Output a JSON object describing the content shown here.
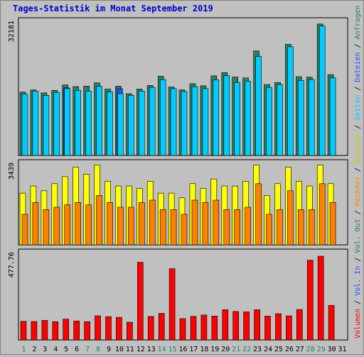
{
  "chart_data": [
    {
      "type": "bar",
      "title": "Tages-Statistik im Monat September 2019",
      "categories": [
        "1",
        "2",
        "3",
        "4",
        "5",
        "6",
        "7",
        "8",
        "9",
        "10",
        "11",
        "12",
        "13",
        "14",
        "15",
        "16",
        "17",
        "18",
        "19",
        "20",
        "21",
        "22",
        "23",
        "24",
        "25",
        "26",
        "27",
        "28",
        "29",
        "30",
        "31"
      ],
      "weekend_days": [
        "1",
        "7",
        "8",
        "14",
        "15",
        "21",
        "22",
        "28",
        "29"
      ],
      "panel": "top",
      "ylim": [
        0,
        32181
      ],
      "ytick": "32181",
      "series": [
        {
          "name": "Anfragen",
          "color": "#2a8060",
          "values": [
            15300,
            15800,
            15100,
            15700,
            17000,
            16600,
            16700,
            17500,
            16000,
            16700,
            14900,
            16000,
            16900,
            19100,
            16500,
            15800,
            17300,
            16800,
            19200,
            20000,
            18900,
            18700,
            25200,
            17100,
            17600,
            26800,
            19000,
            18900,
            31700,
            19500,
            0
          ]
        },
        {
          "name": "Seiten",
          "color": "#2050ff",
          "values": [
            0,
            0,
            0,
            0,
            16300,
            0,
            0,
            0,
            0,
            16100,
            0,
            0,
            0,
            0,
            0,
            0,
            0,
            0,
            0,
            0,
            0,
            0,
            0,
            0,
            0,
            0,
            0,
            0,
            0,
            0,
            0
          ]
        },
        {
          "name": "Dateien",
          "color": "#00ccff",
          "values": [
            14800,
            15500,
            14500,
            15200,
            16100,
            15700,
            15500,
            16700,
            15300,
            14900,
            14500,
            15500,
            16400,
            18300,
            16100,
            15400,
            16600,
            16100,
            18200,
            19200,
            17600,
            17900,
            23900,
            16400,
            17100,
            26200,
            18100,
            18300,
            31200,
            18700,
            0
          ]
        }
      ],
      "legend": [
        "Anfragen",
        "/",
        "Dateien",
        "/",
        "Seiten",
        "/",
        "Besuche"
      ]
    },
    {
      "type": "bar",
      "panel": "middle",
      "ylim": [
        0,
        3439
      ],
      "ytick": "3439",
      "series": [
        {
          "name": "Besuche",
          "color": "#ffff00",
          "values": [
            2200,
            2500,
            2300,
            2600,
            2900,
            3300,
            3000,
            3400,
            2700,
            2500,
            2500,
            2400,
            2700,
            2200,
            2200,
            2000,
            2600,
            2400,
            2800,
            2500,
            2500,
            2700,
            3400,
            2100,
            2600,
            3300,
            2700,
            2500,
            3400,
            2600,
            0
          ]
        },
        {
          "name": "Rechner",
          "color": "#ff8000",
          "values": [
            1300,
            1800,
            1500,
            1600,
            1700,
            1800,
            1700,
            2100,
            1800,
            1600,
            1600,
            1800,
            1900,
            1500,
            1500,
            1300,
            1900,
            1800,
            1900,
            1500,
            1500,
            1600,
            2600,
            1300,
            1500,
            2300,
            1500,
            1500,
            2600,
            1800,
            0
          ]
        }
      ],
      "legend": [
        "Rechner",
        "/",
        "Besuche"
      ]
    },
    {
      "type": "bar",
      "panel": "bottom",
      "ylim": [
        0,
        477.76
      ],
      "ytick": "477.76",
      "series": [
        {
          "name": "Volumen",
          "color": "#ff0000",
          "values": [
            103,
            102,
            108,
            101,
            115,
            105,
            101,
            133,
            129,
            125,
            98,
            429,
            130,
            147,
            393,
            118,
            130,
            138,
            132,
            167,
            157,
            155,
            167,
            132,
            145,
            133,
            168,
            440,
            462,
            191,
            0
          ]
        }
      ],
      "legend": [
        "Volumen",
        "/",
        "Vol. In",
        "/",
        "Vol. Out"
      ]
    }
  ],
  "right_label_parts": [
    {
      "text": "Volumen",
      "color": "#ff0000"
    },
    {
      "text": " / ",
      "color": "#000000"
    },
    {
      "text": "Vol. In",
      "color": "#2050ff"
    },
    {
      "text": " / ",
      "color": "#000000"
    },
    {
      "text": "Vol. Out",
      "color": "#2a8060"
    },
    {
      "text": " / ",
      "color": "#000000"
    },
    {
      "text": "Rechner",
      "color": "#ff8000"
    },
    {
      "text": " / ",
      "color": "#000000"
    },
    {
      "text": "Besuche",
      "color": "#cccc00"
    },
    {
      "text": " / ",
      "color": "#000000"
    },
    {
      "text": "Seiten",
      "color": "#00ccff"
    },
    {
      "text": " / ",
      "color": "#000000"
    },
    {
      "text": "Dateien",
      "color": "#2050ff"
    },
    {
      "text": " / ",
      "color": "#000000"
    },
    {
      "text": "Anfragen",
      "color": "#2a8060"
    }
  ],
  "colors": {
    "weekday_label": "#000000",
    "weekend_label": "#2a8060",
    "panel_bg": "#c0c0c0",
    "border": "#808080"
  }
}
